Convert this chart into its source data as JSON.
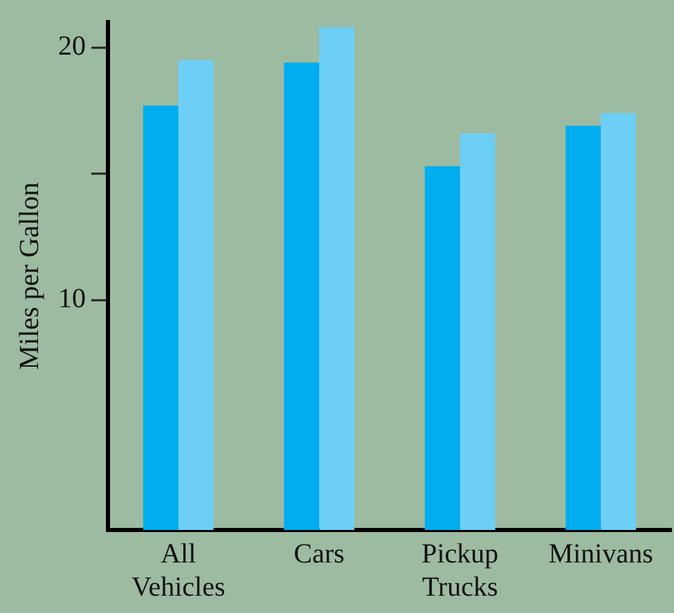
{
  "chart_data": {
    "type": "bar",
    "ylabel": "Miles per Gallon",
    "categories": [
      "All Vehicles",
      "Cars",
      "Pickup Trucks",
      "Minivans"
    ],
    "series": [
      {
        "color": "#00adef",
        "values": [
          17.7,
          19.4,
          15.3,
          16.9
        ]
      },
      {
        "color": "#6dcff6",
        "values": [
          19.5,
          20.8,
          16.6,
          17.4
        ]
      }
    ],
    "ylim": [
      0.9,
      21
    ],
    "yticks": [
      10,
      {
        "value": 15,
        "label": null
      },
      20
    ],
    "grid": false,
    "legend": false
  }
}
